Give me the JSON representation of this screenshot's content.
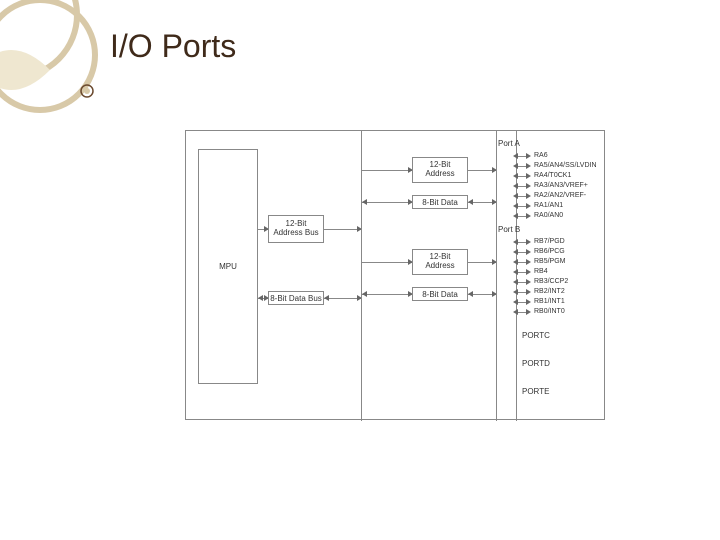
{
  "title": "I/O Ports",
  "deco": {
    "ring_stroke": "#d8c9a8",
    "leaf_fill": "#efe7d0"
  },
  "bullet": {
    "outer": "#6b4a2f",
    "inner": "#d8c9a8"
  },
  "diagram": {
    "mpu": "MPU",
    "addr_bus": "12-Bit\nAddress Bus",
    "data_bus": "8-Bit Data Bus",
    "addr_12": "12-Bit\nAddress",
    "data_8": "8-Bit Data",
    "port_a": "Port A",
    "port_b": "Port B",
    "port_c": "PORTC",
    "port_d": "PORTD",
    "port_e": "PORTE",
    "pins_a": [
      "RA6",
      "RA5/AN4/SS/LVDIN",
      "RA4/T0CK1",
      "RA3/AN3/VREF+",
      "RA2/AN2/VREF-",
      "RA1/AN1",
      "RA0/AN0"
    ],
    "pins_b": [
      "RB7/PGD",
      "RB6/PCG",
      "RB5/PGM",
      "RB4",
      "RB3/CCP2",
      "RB2/INT2",
      "RB1/INT1",
      "RB0/INT0"
    ]
  }
}
